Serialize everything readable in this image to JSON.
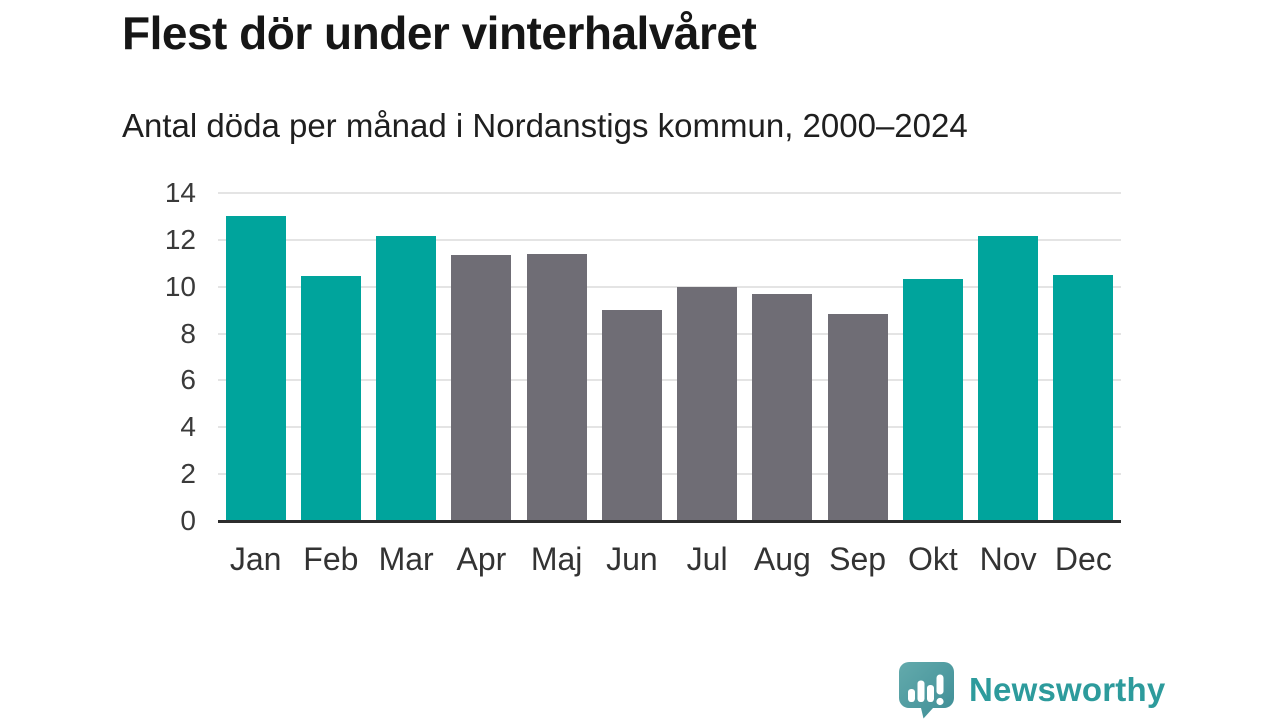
{
  "header": {
    "title": "Flest dör under vinterhalvåret",
    "subtitle": "Antal döda per månad i Nordanstigs kommun, 2000–2024"
  },
  "chart_data": {
    "type": "bar",
    "title": "Flest dör under vinterhalvåret",
    "subtitle": "Antal döda per månad i Nordanstigs kommun, 2000–2024",
    "categories": [
      "Jan",
      "Feb",
      "Mar",
      "Apr",
      "Maj",
      "Jun",
      "Jul",
      "Aug",
      "Sep",
      "Okt",
      "Nov",
      "Dec"
    ],
    "values": [
      13.0,
      10.45,
      12.15,
      11.35,
      11.4,
      9.0,
      10.0,
      9.7,
      8.85,
      10.35,
      12.15,
      10.5
    ],
    "bar_colors": [
      "#00a49c",
      "#00a49c",
      "#00a49c",
      "#6f6d75",
      "#6f6d75",
      "#6f6d75",
      "#6f6d75",
      "#6f6d75",
      "#6f6d75",
      "#00a49c",
      "#00a49c",
      "#00a49c"
    ],
    "highlight_color": "#00a49c",
    "base_color": "#6f6d75",
    "yticks": [
      0,
      2,
      4,
      6,
      8,
      10,
      12,
      14
    ],
    "ylim": [
      0,
      14
    ],
    "xlabel": "",
    "ylabel": "",
    "grid": "horizontal",
    "legend": "none"
  },
  "footer": {
    "brand": "Newsworthy",
    "brand_color": "#2d9b9c"
  }
}
